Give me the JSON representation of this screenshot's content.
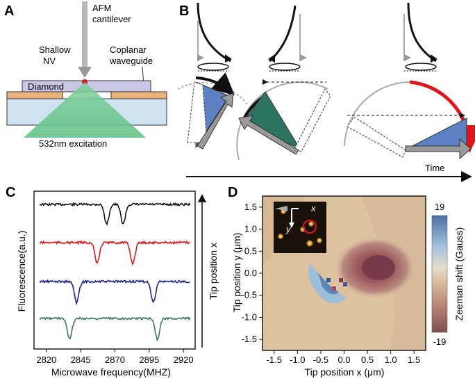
{
  "panels": {
    "A": {
      "label": "A",
      "cantilever": "AFM\ncantilever",
      "nv": "Shallow\nNV",
      "waveguide": "Coplanar\nwaveguide",
      "diamond": "Diamond",
      "excitation": "532nm excitation"
    },
    "B": {
      "label": "B",
      "time_label": "Time"
    },
    "C": {
      "label": "C",
      "ylabel": "Fluorescence(a.u.)",
      "xlabel": "Microwave  frequency(MHZ)",
      "right_axis_label": "Tip position x",
      "xticks": [
        "2820",
        "2845",
        "2870",
        "2895",
        "2920"
      ]
    },
    "D": {
      "label": "D",
      "xlabel": "Tip position x (μm)",
      "ylabel": "Tip position y (μm)",
      "xticks": [
        "-1.5",
        "-1.0",
        "-0.5",
        "0.0",
        "0.5",
        "1.0",
        "1.5"
      ],
      "yticks": [
        "1.5",
        "1.0",
        "0.5",
        "0.0",
        "-0.5",
        "-1.0",
        "-1.5"
      ],
      "colorbar_label": "Zeeman shift (Gauss)",
      "colorbar_max": "19",
      "colorbar_min": "-19",
      "inset_x": "x",
      "inset_y": "y"
    }
  },
  "chart_data": {
    "type": "line",
    "title": "",
    "xlabel": "Microwave  frequency(MHZ)",
    "ylabel": "Fluorescence(a.u.)",
    "xlim": [
      2814,
      2926
    ],
    "series": [
      {
        "color": "#111111",
        "dips": [
          2864,
          2876
        ]
      },
      {
        "color": "#e0161b",
        "dips": [
          2857,
          2883
        ]
      },
      {
        "color": "#1c2290",
        "dips": [
          2842,
          2898
        ]
      },
      {
        "color": "#3a7c58",
        "dips": [
          2837,
          2901
        ]
      }
    ]
  }
}
